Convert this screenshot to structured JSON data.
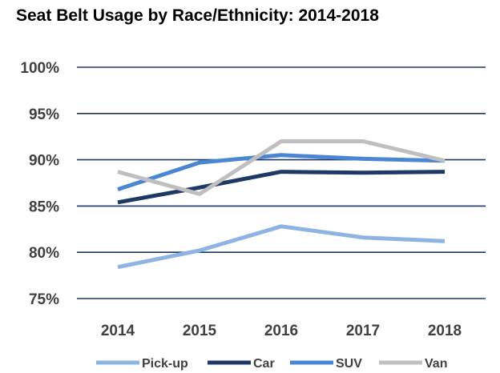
{
  "chart_data": {
    "type": "line",
    "title": "Seat Belt Usage by Race/Ethnicity: 2014-2018",
    "xlabel": "",
    "ylabel": "",
    "categories": [
      "2014",
      "2015",
      "2016",
      "2017",
      "2018"
    ],
    "ylim": [
      75,
      100
    ],
    "y_ticks": [
      75,
      80,
      85,
      90,
      95,
      100
    ],
    "y_tick_labels": [
      "75%",
      "80%",
      "85%",
      "90%",
      "95%",
      "100%"
    ],
    "grid": true,
    "legend_position": "bottom",
    "series": [
      {
        "name": "Pick-up",
        "color": "#8EB4E3",
        "values": [
          78.4,
          80.2,
          82.8,
          81.6,
          81.2
        ]
      },
      {
        "name": "Car",
        "color": "#1F3864",
        "values": [
          85.4,
          87.0,
          88.7,
          88.6,
          88.7
        ]
      },
      {
        "name": "SUV",
        "color": "#4A86D4",
        "values": [
          86.8,
          89.7,
          90.5,
          90.1,
          89.9
        ]
      },
      {
        "name": "Van",
        "color": "#BFBFBF",
        "values": [
          88.7,
          86.3,
          92.0,
          92.0,
          89.9
        ]
      }
    ]
  }
}
